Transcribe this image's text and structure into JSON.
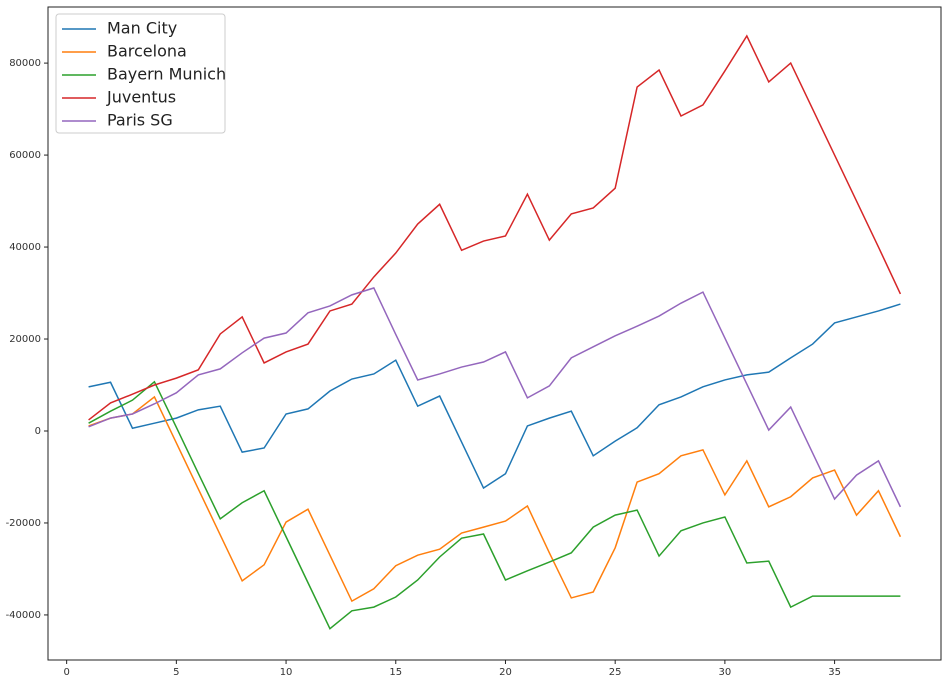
{
  "chart_data": {
    "type": "line",
    "x": [
      1,
      2,
      3,
      4,
      5,
      6,
      7,
      8,
      9,
      10,
      11,
      12,
      13,
      14,
      15,
      16,
      17,
      18,
      19,
      20,
      21,
      22,
      23,
      24,
      25,
      26,
      27,
      28,
      29,
      30,
      31,
      32,
      33,
      34,
      35,
      36,
      37,
      38
    ],
    "series": [
      {
        "name": "Man City",
        "color": "#1f77b4",
        "values": [
          9600,
          10600,
          600,
          1700,
          2800,
          4600,
          5400,
          -4600,
          -3700,
          3700,
          4800,
          8700,
          11300,
          12400,
          15400,
          5400,
          7600,
          -2400,
          -12400,
          -9300,
          1100,
          2800,
          4300,
          -5400,
          -2200,
          700,
          5700,
          7400,
          9600,
          11100,
          12200,
          12800,
          15900,
          18900,
          23500,
          24800,
          26100,
          27600
        ]
      },
      {
        "name": "Barcelona",
        "color": "#ff7f0e",
        "values": [
          1100,
          2800,
          3700,
          7400,
          -2600,
          -12600,
          -22600,
          -32600,
          -29100,
          -19800,
          -17000,
          -27000,
          -37000,
          -34300,
          -29300,
          -27000,
          -25700,
          -22200,
          -20900,
          -19600,
          -16300,
          -26500,
          -36300,
          -35000,
          -25400,
          -11100,
          -9300,
          -5400,
          -4100,
          -13900,
          -6500,
          -16500,
          -14300,
          -10200,
          -8500,
          -18300,
          -13000,
          -23000
        ]
      },
      {
        "name": "Bayern Munich",
        "color": "#2ca02c",
        "values": [
          1700,
          4300,
          6700,
          10700,
          800,
          -9200,
          -19100,
          -15600,
          -13000,
          -23000,
          -33000,
          -43000,
          -39100,
          -38300,
          -36100,
          -32400,
          -27400,
          -23300,
          -22400,
          -32400,
          -30400,
          -28500,
          -26500,
          -20900,
          -18300,
          -17200,
          -27200,
          -21700,
          -20000,
          -18700,
          -28700,
          -28300,
          -38300,
          -35900,
          -35900,
          -35900,
          -35900,
          -35900
        ]
      },
      {
        "name": "Juventus",
        "color": "#d62728",
        "values": [
          2400,
          6100,
          8000,
          10000,
          11500,
          13300,
          21100,
          24800,
          14800,
          17200,
          18900,
          26100,
          27600,
          33500,
          38700,
          45000,
          49300,
          39300,
          41300,
          42400,
          51500,
          41500,
          47200,
          48500,
          52800,
          74800,
          78500,
          68500,
          70900,
          78300,
          85900,
          75900,
          80000,
          70000,
          60000,
          50000,
          40000,
          29800
        ]
      },
      {
        "name": "Paris SG",
        "color": "#9467bd",
        "values": [
          900,
          2800,
          3700,
          5900,
          8300,
          12200,
          13500,
          17000,
          20200,
          21300,
          25700,
          27200,
          29600,
          31100,
          21000,
          11100,
          12400,
          13900,
          15000,
          17200,
          7200,
          9800,
          15900,
          18300,
          20700,
          22800,
          25000,
          27800,
          30200,
          20200,
          10200,
          200,
          5200,
          -4800,
          -14800,
          -9600,
          -6500,
          -16500
        ]
      }
    ],
    "xlim": [
      -0.85,
      39.85
    ],
    "xticks": [
      0,
      5,
      10,
      15,
      20,
      25,
      30,
      35
    ],
    "ylim": [
      -49800,
      92200
    ],
    "yticks": [
      -40000,
      -20000,
      0,
      20000,
      40000,
      60000,
      80000
    ],
    "legend": "upper left"
  }
}
